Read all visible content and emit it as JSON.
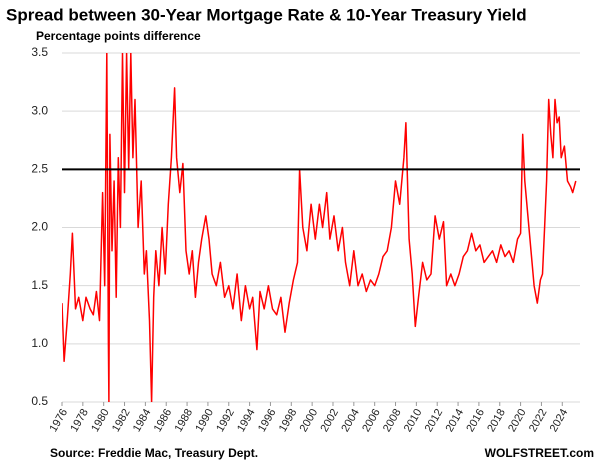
{
  "chart_data": {
    "type": "line",
    "title": "Spread between 30-Year Mortgage Rate & 10-Year Treasury Yield",
    "subtitle": "Percentage points difference",
    "source": "Source: Freddie Mac, Treasury Dept.",
    "brand": "WOLFSTREET.com",
    "x": [
      1976.0,
      1976.2,
      1976.5,
      1976.8,
      1977.0,
      1977.3,
      1977.6,
      1978.0,
      1978.3,
      1978.7,
      1979.0,
      1979.3,
      1979.6,
      1979.9,
      1980.1,
      1980.3,
      1980.45,
      1980.5,
      1980.6,
      1980.8,
      1981.0,
      1981.2,
      1981.4,
      1981.6,
      1981.8,
      1982.0,
      1982.2,
      1982.4,
      1982.6,
      1982.8,
      1983.0,
      1983.3,
      1983.6,
      1983.9,
      1984.1,
      1984.4,
      1984.6,
      1984.8,
      1985.0,
      1985.3,
      1985.6,
      1985.9,
      1986.2,
      1986.5,
      1986.8,
      1987.0,
      1987.3,
      1987.6,
      1987.9,
      1988.2,
      1988.5,
      1988.8,
      1989.1,
      1989.4,
      1989.8,
      1990.1,
      1990.4,
      1990.8,
      1991.2,
      1991.6,
      1992.0,
      1992.4,
      1992.8,
      1993.2,
      1993.6,
      1994.0,
      1994.3,
      1994.7,
      1995.0,
      1995.4,
      1995.8,
      1996.2,
      1996.6,
      1997.0,
      1997.4,
      1997.8,
      1998.2,
      1998.6,
      1998.8,
      1999.1,
      1999.5,
      1999.9,
      2000.3,
      2000.7,
      2001.0,
      2001.4,
      2001.7,
      2002.1,
      2002.5,
      2002.9,
      2003.2,
      2003.6,
      2004.0,
      2004.4,
      2004.8,
      2005.2,
      2005.6,
      2006.0,
      2006.4,
      2006.8,
      2007.2,
      2007.6,
      2008.0,
      2008.4,
      2008.8,
      2009.0,
      2009.3,
      2009.6,
      2009.9,
      2010.2,
      2010.6,
      2011.0,
      2011.4,
      2011.8,
      2012.2,
      2012.6,
      2012.9,
      2013.3,
      2013.7,
      2014.1,
      2014.5,
      2014.9,
      2015.3,
      2015.7,
      2016.1,
      2016.5,
      2016.9,
      2017.3,
      2017.7,
      2018.1,
      2018.5,
      2018.9,
      2019.3,
      2019.7,
      2020.0,
      2020.2,
      2020.4,
      2020.7,
      2021.0,
      2021.3,
      2021.6,
      2021.9,
      2022.1,
      2022.3,
      2022.5,
      2022.7,
      2022.9,
      2023.1,
      2023.3,
      2023.5,
      2023.7,
      2023.9,
      2024.2,
      2024.5,
      2024.8,
      2025.0,
      2025.3
    ],
    "series": [
      {
        "name": "Spread",
        "color": "#ff0000",
        "values": [
          1.35,
          0.85,
          1.2,
          1.6,
          1.95,
          1.3,
          1.4,
          1.2,
          1.4,
          1.3,
          1.25,
          1.45,
          1.2,
          2.3,
          1.5,
          3.5,
          1.0,
          0.5,
          2.8,
          1.8,
          2.4,
          1.4,
          2.6,
          2.0,
          3.5,
          2.3,
          3.5,
          2.5,
          3.5,
          2.6,
          3.1,
          2.0,
          2.4,
          1.6,
          1.8,
          1.2,
          0.5,
          1.4,
          1.8,
          1.5,
          2.0,
          1.6,
          2.2,
          2.6,
          3.2,
          2.6,
          2.3,
          2.55,
          1.8,
          1.6,
          1.8,
          1.4,
          1.7,
          1.9,
          2.1,
          1.9,
          1.6,
          1.5,
          1.7,
          1.4,
          1.5,
          1.3,
          1.6,
          1.2,
          1.5,
          1.3,
          1.4,
          0.95,
          1.45,
          1.3,
          1.5,
          1.3,
          1.25,
          1.4,
          1.1,
          1.35,
          1.55,
          1.7,
          2.5,
          2.0,
          1.8,
          2.2,
          1.9,
          2.2,
          2.0,
          2.3,
          1.9,
          2.1,
          1.8,
          2.0,
          1.7,
          1.5,
          1.8,
          1.5,
          1.6,
          1.45,
          1.55,
          1.5,
          1.6,
          1.75,
          1.8,
          2.0,
          2.4,
          2.2,
          2.6,
          2.9,
          1.9,
          1.6,
          1.15,
          1.4,
          1.7,
          1.55,
          1.6,
          2.1,
          1.9,
          2.05,
          1.5,
          1.6,
          1.5,
          1.6,
          1.75,
          1.8,
          1.95,
          1.8,
          1.85,
          1.7,
          1.75,
          1.8,
          1.7,
          1.85,
          1.75,
          1.8,
          1.7,
          1.9,
          1.95,
          2.8,
          2.4,
          2.1,
          1.8,
          1.5,
          1.35,
          1.55,
          1.6,
          2.0,
          2.4,
          3.1,
          2.8,
          2.6,
          3.1,
          2.9,
          2.95,
          2.6,
          2.7,
          2.4,
          2.35,
          2.3,
          2.4
        ]
      }
    ],
    "reference_line": 2.5,
    "xlim": [
      1976,
      2025.7
    ],
    "xticks": [
      1976,
      1978,
      1980,
      1982,
      1984,
      1986,
      1988,
      1990,
      1992,
      1994,
      1996,
      1998,
      2000,
      2002,
      2004,
      2006,
      2008,
      2010,
      2012,
      2014,
      2016,
      2018,
      2020,
      2022,
      2024
    ],
    "ylim": [
      0.5,
      3.5
    ],
    "yticks": [
      0.5,
      {
        "value": 1,
        "label": "1.0"
      },
      1.5,
      {
        "value": 2,
        "label": "2.0"
      },
      2.5,
      {
        "value": 3,
        "label": "3.0"
      },
      3.5
    ],
    "grid": true
  }
}
